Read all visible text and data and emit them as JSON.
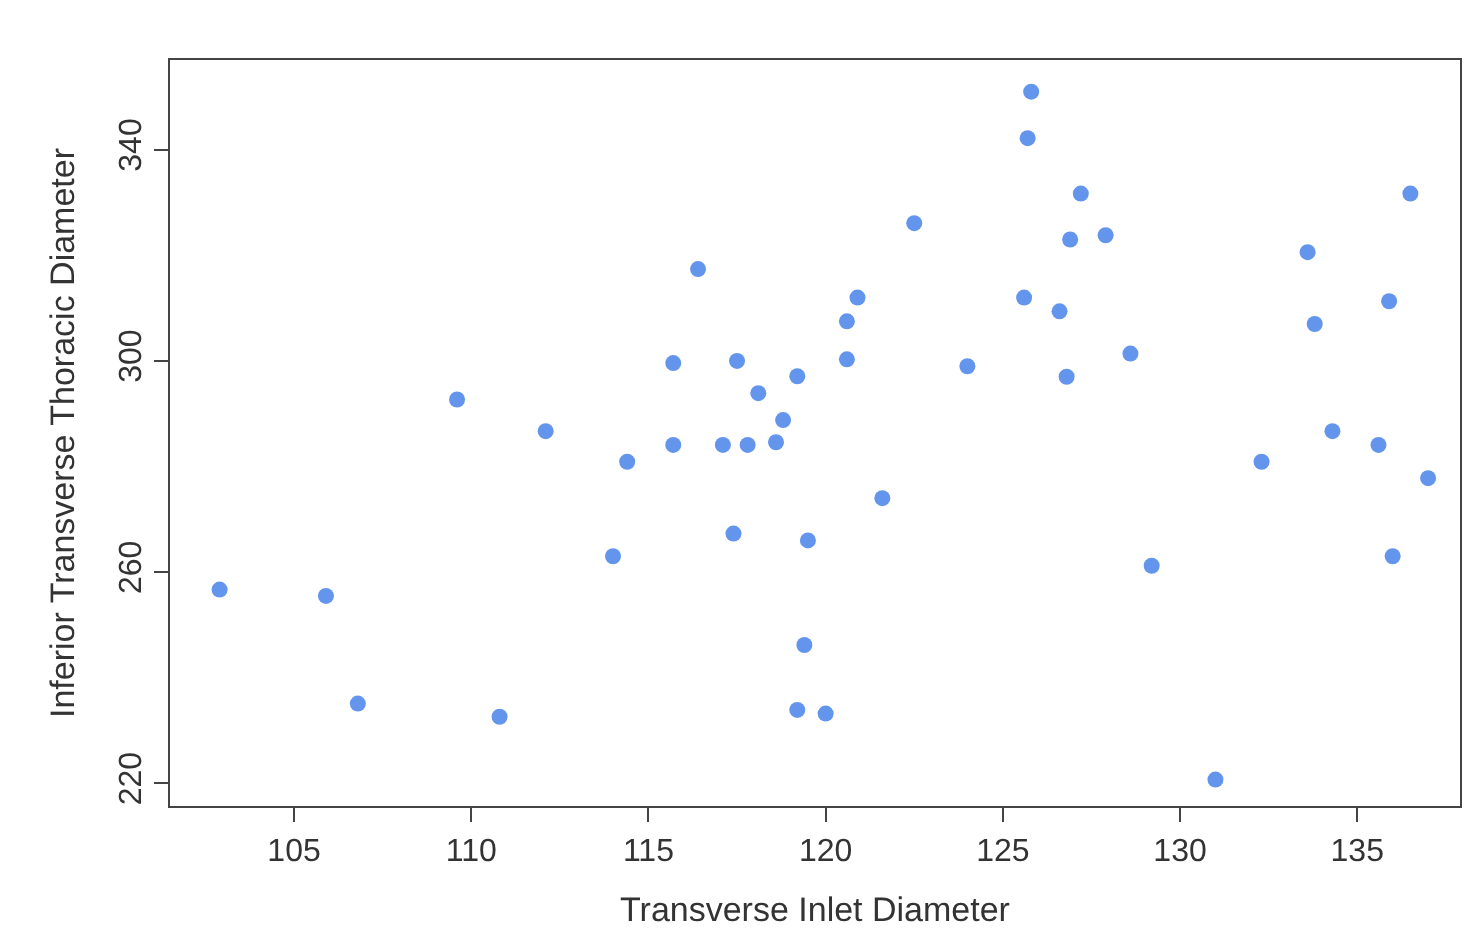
{
  "chart_data": {
    "type": "scatter",
    "xlabel": "Transverse Inlet Diameter",
    "ylabel": "Inferior Transverse Thoracic Diameter",
    "xlim": [
      101.5,
      137.9
    ],
    "ylim": [
      215.7,
      357
    ],
    "xticks": [
      105,
      110,
      115,
      120,
      125,
      130,
      135
    ],
    "yticks": [
      220,
      260,
      300,
      340
    ],
    "marker": "circle",
    "series": [
      {
        "color": "#6495ed",
        "x": [
          102.9,
          105.9,
          106.8,
          109.6,
          110.8,
          112.1,
          114.0,
          114.4,
          116.4,
          115.7,
          115.7,
          117.5,
          118.1,
          119.2,
          118.8,
          117.1,
          117.8,
          118.6,
          117.4,
          119.5,
          119.4,
          119.2,
          120.0,
          120.6,
          120.6,
          120.9,
          121.6,
          122.5,
          124.0,
          125.8,
          125.7,
          125.6,
          127.2,
          126.9,
          127.9,
          126.6,
          126.8,
          128.6,
          129.2,
          131.0,
          132.3,
          133.6,
          133.8,
          134.3,
          135.6,
          135.9,
          136.0,
          136.5,
          137.0
        ],
        "values": [
          256.7,
          255.5,
          235.1,
          292.7,
          232.6,
          286.7,
          263.0,
          280.9,
          317.4,
          299.6,
          284.1,
          300.0,
          293.9,
          297.1,
          288.8,
          284.1,
          284.1,
          284.6,
          267.3,
          266.0,
          246.2,
          233.9,
          233.2,
          307.5,
          300.3,
          312.0,
          274.0,
          326.1,
          299.0,
          351.0,
          342.2,
          312.0,
          331.7,
          323.0,
          323.8,
          309.4,
          297.0,
          301.4,
          261.2,
          220.7,
          280.9,
          320.6,
          307.0,
          286.7,
          284.1,
          311.3,
          263.0,
          331.7,
          277.8
        ]
      }
    ]
  }
}
